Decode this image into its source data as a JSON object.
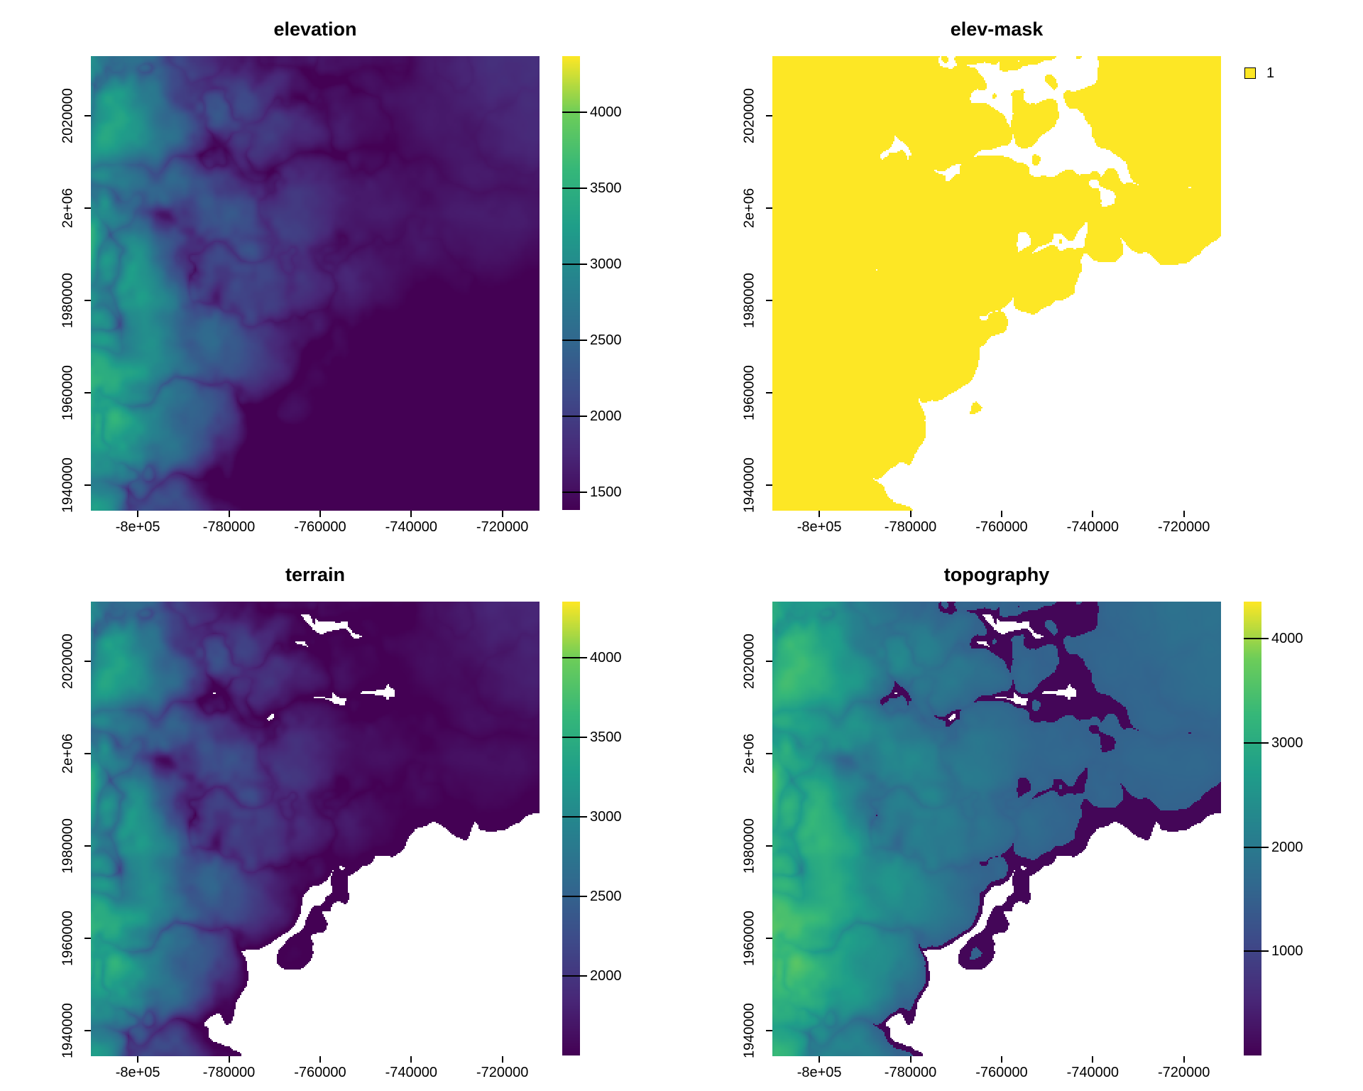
{
  "figure": {
    "background": "#ffffff",
    "text_color": "#000000",
    "na_color": "#ffffff"
  },
  "chart_data": {
    "type": "heatmap",
    "layout": "2x2 raster panels",
    "colormap": "viridis",
    "viridis_stops": [
      "#440154",
      "#482878",
      "#3E4A89",
      "#31688E",
      "#26828E",
      "#1F9E89",
      "#35B779",
      "#6DCD59",
      "#FDE725"
    ],
    "axes": {
      "x_domain": [
        -810300,
        -711850
      ],
      "y_domain": [
        1934500,
        2033000
      ],
      "x_ticks": [
        {
          "value": -800000,
          "label": "-8e+05"
        },
        {
          "value": -780000,
          "label": "-780000"
        },
        {
          "value": -760000,
          "label": "-760000"
        },
        {
          "value": -740000,
          "label": "-740000"
        },
        {
          "value": -720000,
          "label": "-720000"
        }
      ],
      "y_ticks": [
        {
          "value": 1940000,
          "label": "1940000"
        },
        {
          "value": 1960000,
          "label": "1960000"
        },
        {
          "value": 1980000,
          "label": "1980000"
        },
        {
          "value": 2000000,
          "label": "2e+06"
        },
        {
          "value": 2020000,
          "label": "2020000"
        }
      ]
    },
    "panels": [
      {
        "id": "elevation",
        "title": "elevation",
        "render": "elevation",
        "color_range": [
          1385,
          4370
        ],
        "legend": {
          "type": "colorbar",
          "range": [
            1385,
            4370
          ],
          "ticks": [
            {
              "value": 4000,
              "label": "4000"
            },
            {
              "value": 3500,
              "label": "3500"
            },
            {
              "value": 3000,
              "label": "3000"
            },
            {
              "value": 2500,
              "label": "2500"
            },
            {
              "value": 2000,
              "label": "2000"
            },
            {
              "value": 1500,
              "label": "1500"
            }
          ]
        }
      },
      {
        "id": "elev-mask",
        "title": "elev-mask",
        "render": "mask",
        "mask_color": "#FDE725",
        "legend": {
          "type": "classes",
          "items": [
            {
              "label": "1",
              "color": "#FDE725"
            }
          ]
        }
      },
      {
        "id": "terrain",
        "title": "terrain",
        "render": "masked_elevation",
        "color_range": [
          1500,
          4355
        ],
        "legend": {
          "type": "colorbar",
          "range": [
            1500,
            4355
          ],
          "ticks": [
            {
              "value": 4000,
              "label": "4000"
            },
            {
              "value": 3500,
              "label": "3500"
            },
            {
              "value": 3000,
              "label": "3000"
            },
            {
              "value": 2500,
              "label": "2500"
            },
            {
              "value": 2000,
              "label": "2000"
            }
          ]
        }
      },
      {
        "id": "topography",
        "title": "topography",
        "render": "topography",
        "color_range": [
          0,
          4355
        ],
        "legend": {
          "type": "colorbar",
          "range": [
            0,
            4355
          ],
          "ticks": [
            {
              "value": 4000,
              "label": "4000"
            },
            {
              "value": 3000,
              "label": "3000"
            },
            {
              "value": 2000,
              "label": "2000"
            },
            {
              "value": 1000,
              "label": "1000"
            }
          ]
        }
      }
    ]
  }
}
